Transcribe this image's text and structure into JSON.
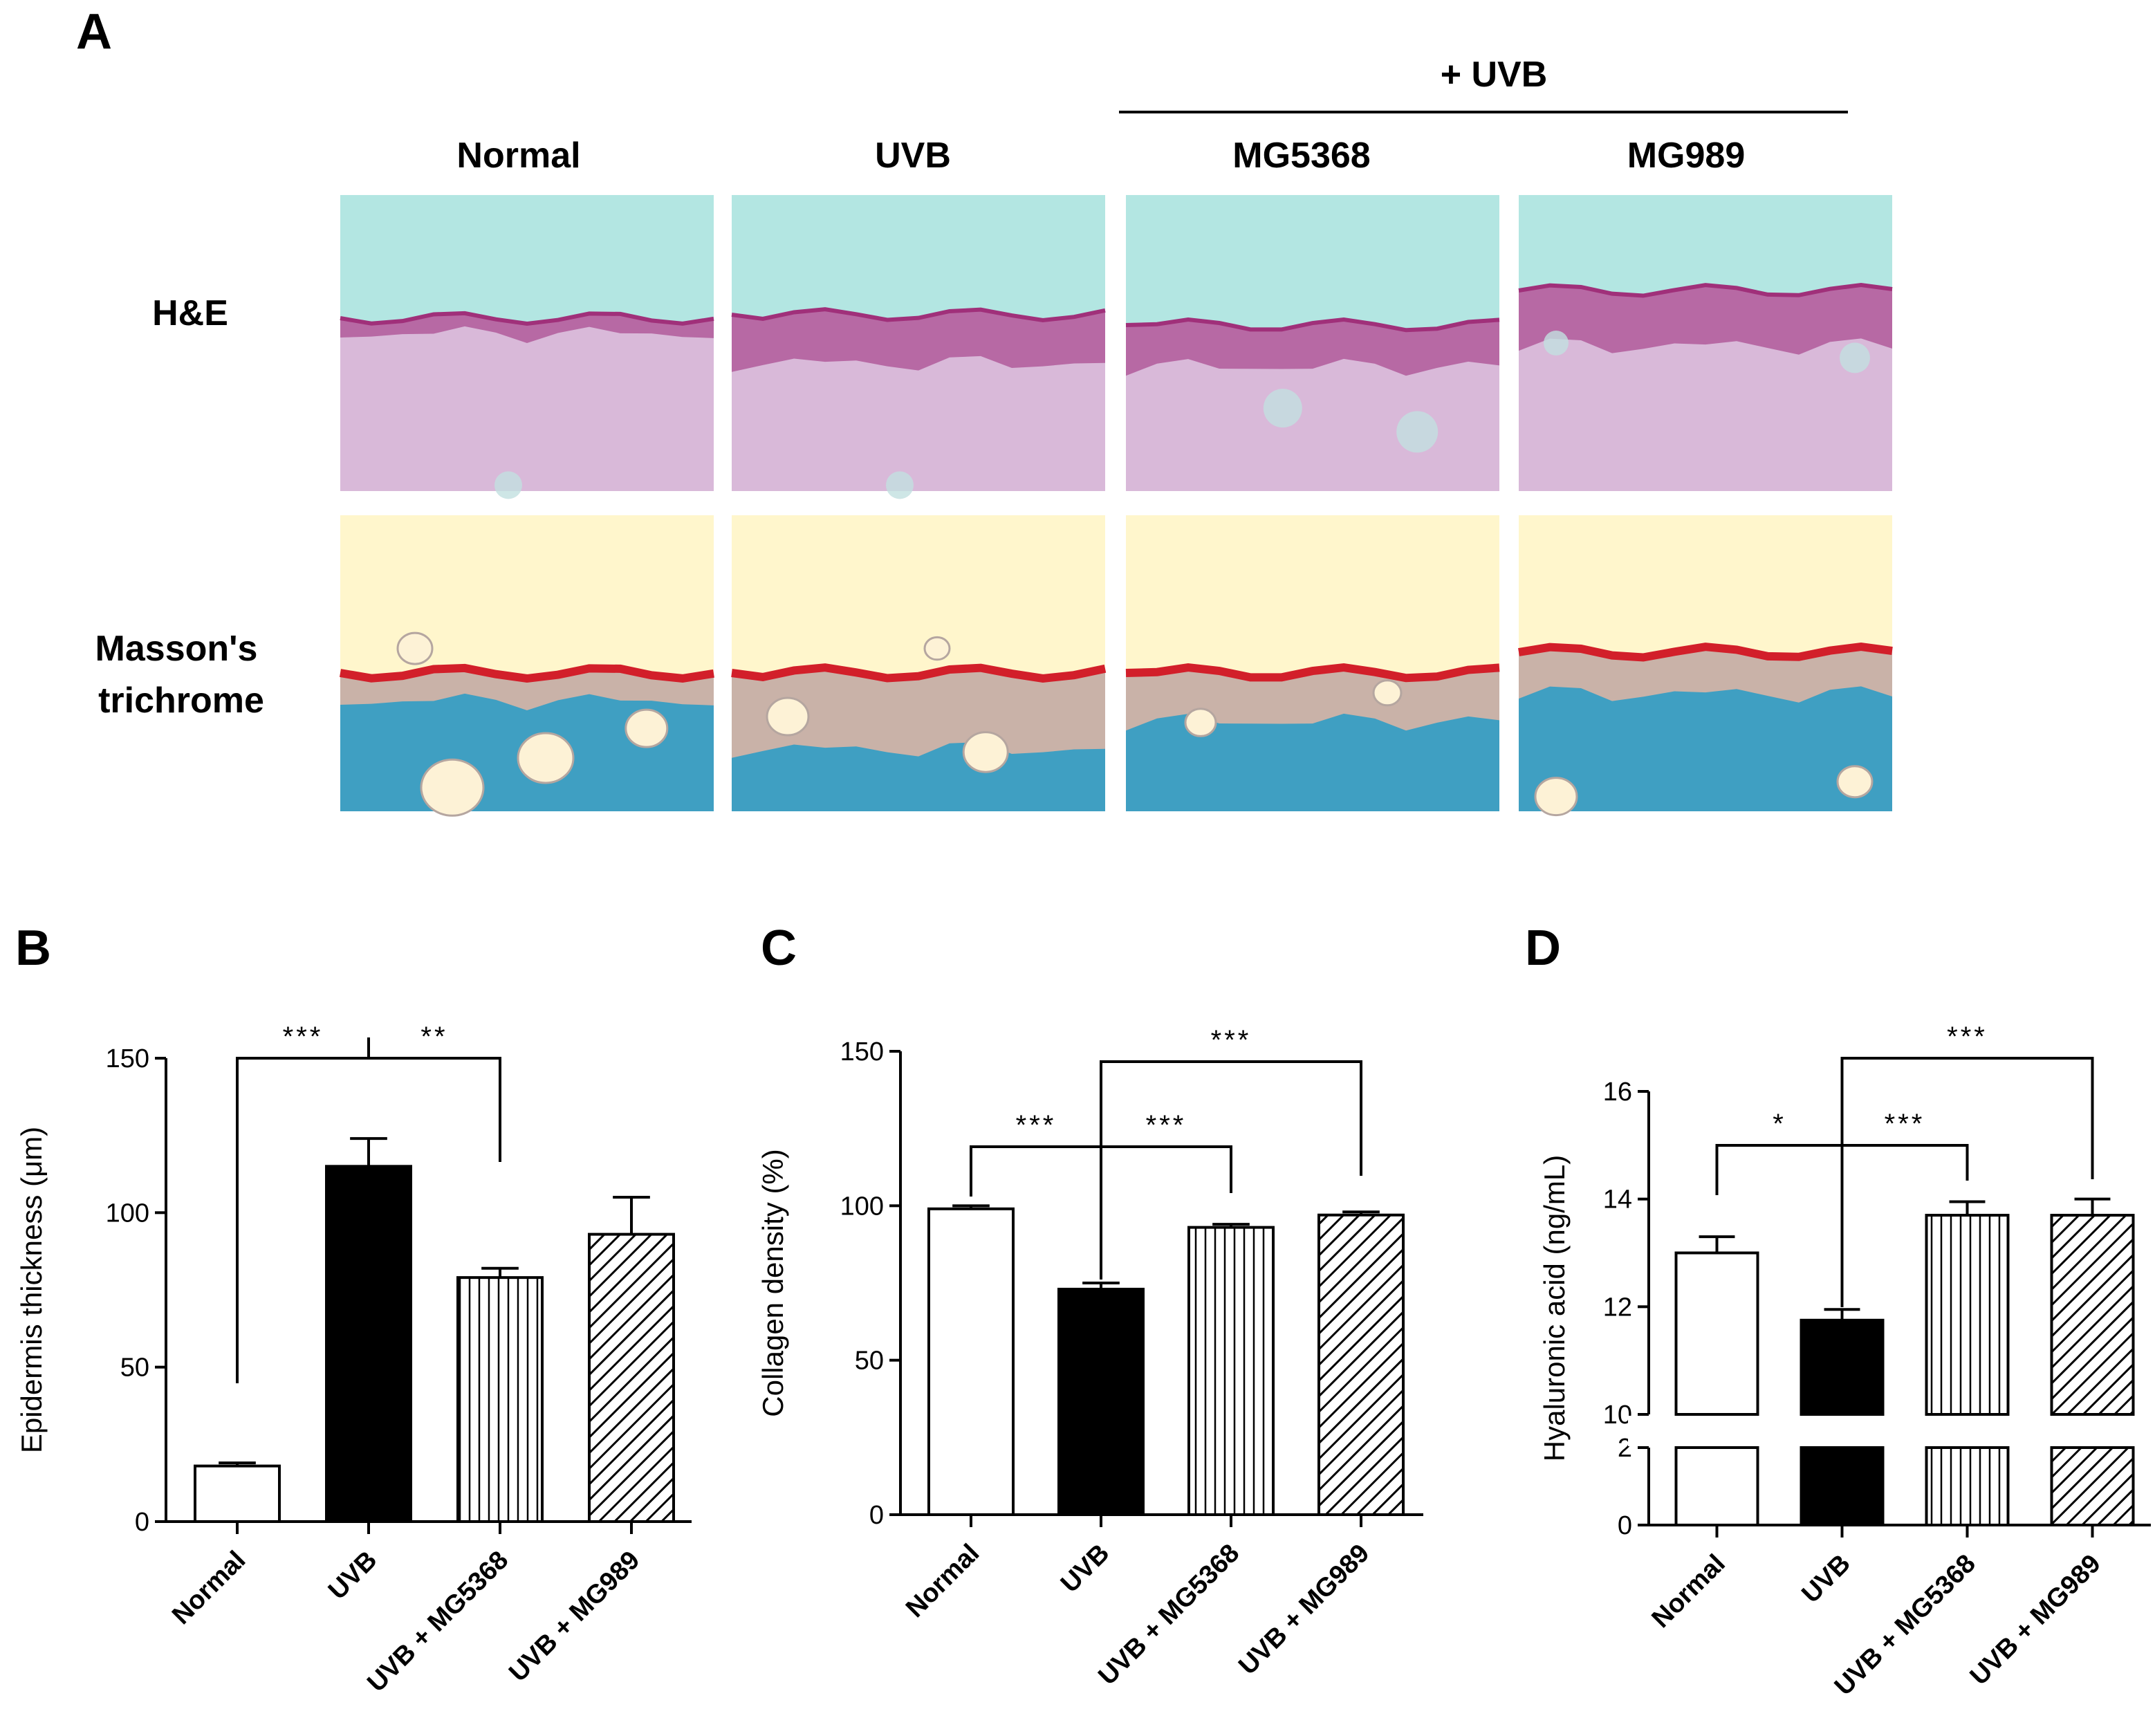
{
  "figure": {
    "panel_letters": [
      "A",
      "B",
      "C",
      "D"
    ],
    "treatment_header": "+ UVB",
    "columns": [
      "Normal",
      "UVB",
      "MG5368",
      "MG989"
    ],
    "rows": [
      "H&E",
      "Masson's",
      "trichrome"
    ]
  },
  "colors": {
    "he_background": "#b3e6e2",
    "he_tissue": "#d9b9d9",
    "he_epidermis": "#b05a9a",
    "mt_background": "#fff6cc",
    "mt_tissue": "#3f9fc2",
    "mt_epidermis": "#c9b2a8",
    "mt_stratum": "#d21f2a"
  },
  "chart_data": [
    {
      "type": "bar",
      "panel": "B",
      "categories": [
        "Normal",
        "UVB",
        "UVB + MG5368",
        "UVB + MG989"
      ],
      "values": [
        18,
        115,
        79,
        93
      ],
      "errors": [
        1,
        9,
        3,
        12
      ],
      "fills": [
        "white",
        "black",
        "vertical-lines",
        "diagonal-lines"
      ],
      "ylabel": "Epidermis thickness (μm)",
      "ylim": [
        0,
        150
      ],
      "yticks": [
        0,
        50,
        100,
        150
      ],
      "significance": [
        {
          "from": 0,
          "to": 1,
          "label": "***"
        },
        {
          "from": 1,
          "to": 2,
          "label": "**"
        }
      ]
    },
    {
      "type": "bar",
      "panel": "C",
      "categories": [
        "Normal",
        "UVB",
        "UVB + MG5368",
        "UVB + MG989"
      ],
      "values": [
        99,
        73,
        93,
        97
      ],
      "errors": [
        1,
        2,
        1,
        1
      ],
      "fills": [
        "white",
        "black",
        "vertical-lines",
        "diagonal-lines"
      ],
      "ylabel": "Collagen density (%)",
      "ylim": [
        0,
        150
      ],
      "yticks": [
        0,
        50,
        100,
        150
      ],
      "significance": [
        {
          "from": 0,
          "to": 1,
          "label": "***"
        },
        {
          "from": 1,
          "to": 2,
          "label": "***"
        },
        {
          "from": 1,
          "to": 3,
          "label": "***"
        }
      ]
    },
    {
      "type": "bar",
      "panel": "D",
      "categories": [
        "Normal",
        "UVB",
        "UVB + MG5368",
        "UVB + MG989"
      ],
      "values": [
        13.0,
        11.75,
        13.7,
        13.7
      ],
      "errors": [
        0.3,
        0.2,
        0.25,
        0.3
      ],
      "fills": [
        "white",
        "black",
        "vertical-lines",
        "diagonal-lines"
      ],
      "ylabel": "Hyaluronic acid (ng/mL)",
      "axis_break": true,
      "ylim_lower": [
        0,
        2
      ],
      "yticks_lower": [
        0,
        2
      ],
      "ylim_upper": [
        10,
        16
      ],
      "yticks_upper": [
        10,
        12,
        14,
        16
      ],
      "significance": [
        {
          "from": 0,
          "to": 1,
          "label": "*"
        },
        {
          "from": 1,
          "to": 2,
          "label": "***"
        },
        {
          "from": 1,
          "to": 3,
          "label": "***"
        }
      ]
    }
  ]
}
